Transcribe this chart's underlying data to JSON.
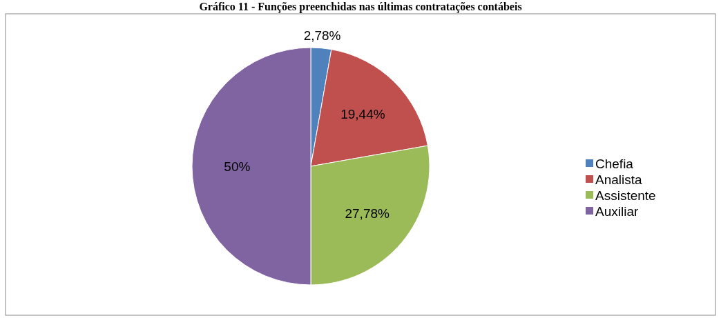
{
  "chart_data": {
    "type": "pie",
    "title": "Gráfico 11 - Funções preenchidas nas últimas contratações contábeis",
    "categories": [
      "Chefia",
      "Analista",
      "Assistente",
      "Auxiliar"
    ],
    "values": [
      2.78,
      19.44,
      27.78,
      50
    ],
    "value_labels": [
      "2,78%",
      "19,44%",
      "27,78%",
      "50%"
    ],
    "colors": [
      "#4f81bd",
      "#c0504d",
      "#9bbb59",
      "#8064a2"
    ],
    "legend": "right"
  }
}
